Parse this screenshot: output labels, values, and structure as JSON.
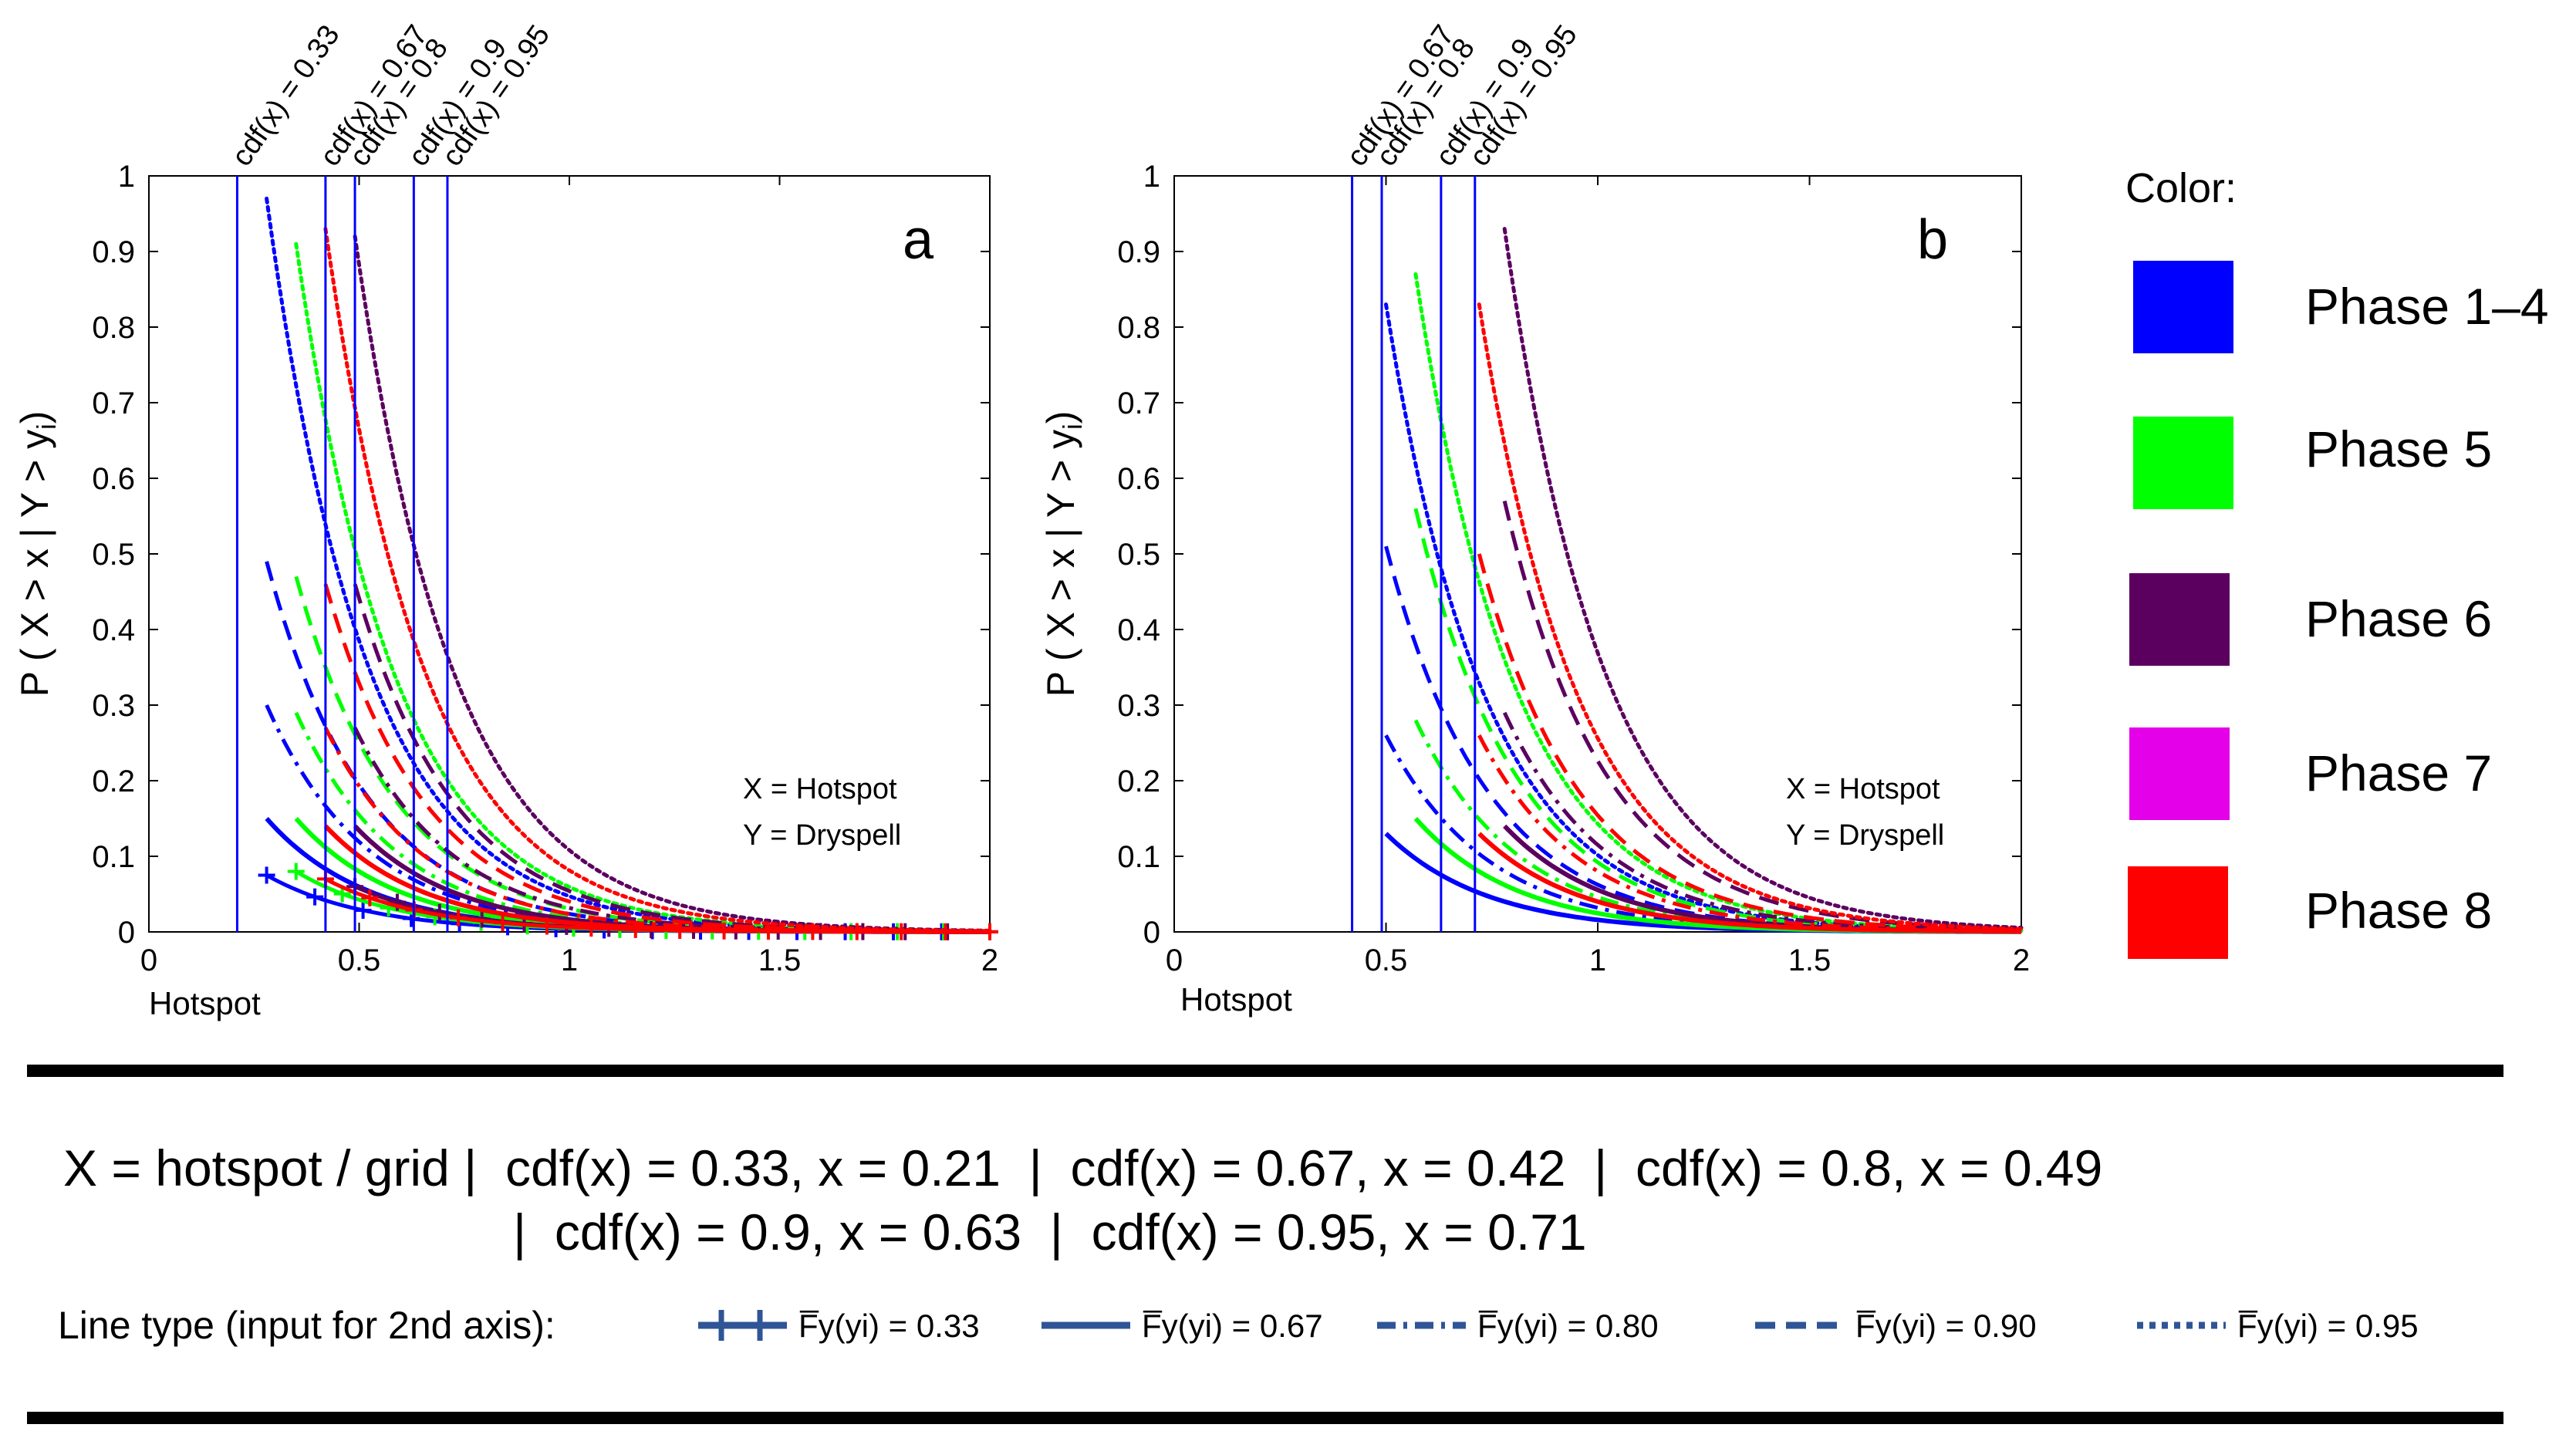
{
  "legend": {
    "title": "Color:",
    "items": [
      {
        "label": "Phase 1–4",
        "color": "#0000ff"
      },
      {
        "label": "Phase 5",
        "color": "#00ff00"
      },
      {
        "label": "Phase 6",
        "color": "#5c0060"
      },
      {
        "label": "Phase 7",
        "color": "#e400e8"
      },
      {
        "label": "Phase 8",
        "color": "#ff0000"
      }
    ]
  },
  "footer": {
    "line1": "X = hotspot / grid |  cdf(x) = 0.33, x = 0.21  |  cdf(x) = 0.67, x = 0.42  |  cdf(x) = 0.8, x = 0.49",
    "line2": "|  cdf(x) = 0.9, x = 0.63  |  cdf(x) = 0.95, x = 0.71",
    "linetype_label": "Line type (input for 2nd axis):",
    "linetypes": [
      {
        "label": "F̅y(yi) = 0.33",
        "style": "plus"
      },
      {
        "label": "F̅y(yi) = 0.67",
        "style": "solid"
      },
      {
        "label": "F̅y(yi) = 0.80",
        "style": "dashdot"
      },
      {
        "label": "F̅y(yi) = 0.90",
        "style": "dashed"
      },
      {
        "label": "F̅y(yi) = 0.95",
        "style": "dotted"
      }
    ],
    "linetype_color": "#2f5597"
  },
  "chart_data": [
    {
      "type": "line",
      "panel_label": "a",
      "xlabel": "Hotspot",
      "ylabel": "P ( X > x | Y > yi)",
      "xlim": [
        0,
        2
      ],
      "ylim": [
        0,
        1
      ],
      "xticks": [
        "0",
        "0.5",
        "1",
        "1.5",
        "2"
      ],
      "yticks": [
        "0",
        "0.1",
        "0.2",
        "0.3",
        "0.4",
        "0.5",
        "0.6",
        "0.7",
        "0.8",
        "0.9",
        "1"
      ],
      "annotation": [
        "X = Hotspot",
        "Y = Dryspell"
      ],
      "vlines": [
        {
          "x": 0.21,
          "label": "cdf(x) = 0.33"
        },
        {
          "x": 0.42,
          "label": "cdf(x) = 0.67"
        },
        {
          "x": 0.49,
          "label": "cdf(x) = 0.8"
        },
        {
          "x": 0.63,
          "label": "cdf(x) = 0.9"
        },
        {
          "x": 0.71,
          "label": "cdf(x) = 0.95"
        }
      ],
      "series": [
        {
          "phase": "Phase 1–4",
          "linetype": "plus",
          "x_start": 0.28,
          "y_start": 0.075
        },
        {
          "phase": "Phase 1–4",
          "linetype": "solid",
          "x_start": 0.28,
          "y_start": 0.15
        },
        {
          "phase": "Phase 1–4",
          "linetype": "dashdot",
          "x_start": 0.28,
          "y_start": 0.3
        },
        {
          "phase": "Phase 1–4",
          "linetype": "dashed",
          "x_start": 0.28,
          "y_start": 0.49
        },
        {
          "phase": "Phase 1–4",
          "linetype": "dotted",
          "x_start": 0.28,
          "y_start": 0.97
        },
        {
          "phase": "Phase 5",
          "linetype": "plus",
          "x_start": 0.35,
          "y_start": 0.08
        },
        {
          "phase": "Phase 5",
          "linetype": "solid",
          "x_start": 0.35,
          "y_start": 0.15
        },
        {
          "phase": "Phase 5",
          "linetype": "dashdot",
          "x_start": 0.35,
          "y_start": 0.29
        },
        {
          "phase": "Phase 5",
          "linetype": "dashed",
          "x_start": 0.35,
          "y_start": 0.47
        },
        {
          "phase": "Phase 5",
          "linetype": "dotted",
          "x_start": 0.35,
          "y_start": 0.91
        },
        {
          "phase": "Phase 6",
          "linetype": "plus",
          "x_start": 0.49,
          "y_start": 0.06
        },
        {
          "phase": "Phase 6",
          "linetype": "solid",
          "x_start": 0.49,
          "y_start": 0.14
        },
        {
          "phase": "Phase 6",
          "linetype": "dashdot",
          "x_start": 0.49,
          "y_start": 0.27
        },
        {
          "phase": "Phase 6",
          "linetype": "dashed",
          "x_start": 0.49,
          "y_start": 0.46
        },
        {
          "phase": "Phase 6",
          "linetype": "dotted",
          "x_start": 0.49,
          "y_start": 0.92
        },
        {
          "phase": "Phase 8",
          "linetype": "plus",
          "x_start": 0.42,
          "y_start": 0.07
        },
        {
          "phase": "Phase 8",
          "linetype": "solid",
          "x_start": 0.42,
          "y_start": 0.14
        },
        {
          "phase": "Phase 8",
          "linetype": "dashdot",
          "x_start": 0.42,
          "y_start": 0.27
        },
        {
          "phase": "Phase 8",
          "linetype": "dashed",
          "x_start": 0.42,
          "y_start": 0.46
        },
        {
          "phase": "Phase 8",
          "linetype": "dotted",
          "x_start": 0.42,
          "y_start": 0.93
        }
      ]
    },
    {
      "type": "line",
      "panel_label": "b",
      "xlabel": "Hotspot",
      "ylabel": "P ( X > x | Y > yi)",
      "xlim": [
        0,
        2
      ],
      "ylim": [
        0,
        1
      ],
      "xticks": [
        "0",
        "0.5",
        "1",
        "1.5",
        "2"
      ],
      "yticks": [
        "0",
        "0.1",
        "0.2",
        "0.3",
        "0.4",
        "0.5",
        "0.6",
        "0.7",
        "0.8",
        "0.9",
        "1"
      ],
      "annotation": [
        "X = Hotspot",
        "Y = Dryspell"
      ],
      "vlines": [
        {
          "x": 0.42,
          "label": "cdf(x) = 0.67"
        },
        {
          "x": 0.49,
          "label": "cdf(x) = 0.8"
        },
        {
          "x": 0.63,
          "label": "cdf(x) = 0.9"
        },
        {
          "x": 0.71,
          "label": "cdf(x) = 0.95"
        }
      ],
      "series": [
        {
          "phase": "Phase 1–4",
          "linetype": "solid",
          "x_start": 0.5,
          "y_start": 0.13
        },
        {
          "phase": "Phase 1–4",
          "linetype": "dashdot",
          "x_start": 0.5,
          "y_start": 0.26
        },
        {
          "phase": "Phase 1–4",
          "linetype": "dashed",
          "x_start": 0.5,
          "y_start": 0.51
        },
        {
          "phase": "Phase 1–4",
          "linetype": "dotted",
          "x_start": 0.5,
          "y_start": 0.83
        },
        {
          "phase": "Phase 5",
          "linetype": "solid",
          "x_start": 0.57,
          "y_start": 0.15
        },
        {
          "phase": "Phase 5",
          "linetype": "dashdot",
          "x_start": 0.57,
          "y_start": 0.28
        },
        {
          "phase": "Phase 5",
          "linetype": "dashed",
          "x_start": 0.57,
          "y_start": 0.56
        },
        {
          "phase": "Phase 5",
          "linetype": "dotted",
          "x_start": 0.57,
          "y_start": 0.87
        },
        {
          "phase": "Phase 6",
          "linetype": "solid",
          "x_start": 0.78,
          "y_start": 0.14
        },
        {
          "phase": "Phase 6",
          "linetype": "dashdot",
          "x_start": 0.78,
          "y_start": 0.29
        },
        {
          "phase": "Phase 6",
          "linetype": "dashed",
          "x_start": 0.78,
          "y_start": 0.57
        },
        {
          "phase": "Phase 6",
          "linetype": "dotted",
          "x_start": 0.78,
          "y_start": 0.93
        },
        {
          "phase": "Phase 8",
          "linetype": "solid",
          "x_start": 0.72,
          "y_start": 0.13
        },
        {
          "phase": "Phase 8",
          "linetype": "dashdot",
          "x_start": 0.72,
          "y_start": 0.26
        },
        {
          "phase": "Phase 8",
          "linetype": "dashed",
          "x_start": 0.72,
          "y_start": 0.5
        },
        {
          "phase": "Phase 8",
          "linetype": "dotted",
          "x_start": 0.72,
          "y_start": 0.83
        }
      ]
    }
  ]
}
